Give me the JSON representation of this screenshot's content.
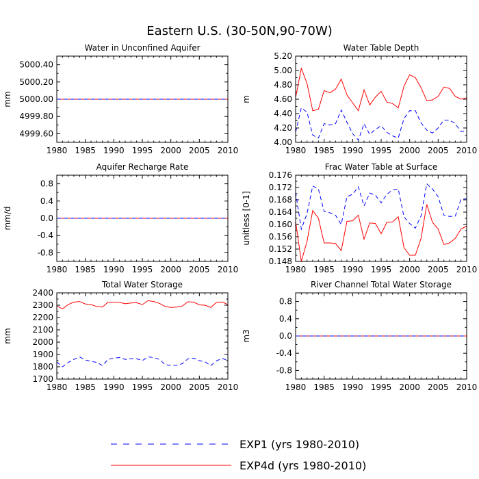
{
  "figure": {
    "title": "Eastern U.S. (30-50N,90-70W)",
    "legend": [
      {
        "label": "EXP1 (yrs 1980-2010)",
        "color": "#0000ff",
        "dash": "dashed"
      },
      {
        "label": "EXP4d (yrs 1980-2010)",
        "color": "#ff0000",
        "dash": "solid"
      }
    ]
  },
  "chart_data": [
    {
      "type": "line",
      "title": "Water in Unconfined Aquifer",
      "ylabel": "mm",
      "xlim": [
        1980,
        2010
      ],
      "ylim": [
        4999.5,
        5000.5
      ],
      "xticks": [
        1980,
        1985,
        1990,
        1995,
        2000,
        2005,
        2010
      ],
      "xtick_labels": [
        "1980",
        "1985",
        "1990",
        "1995",
        "2000",
        "2005",
        "2010"
      ],
      "yticks": [
        4999.6,
        4999.8,
        5000.0,
        5000.2,
        5000.4
      ],
      "ytick_labels": [
        "4999.60",
        "4999.80",
        "5000.00",
        "5000.20",
        "5000.40"
      ],
      "x": [
        1980,
        2010
      ],
      "series": [
        {
          "name": "EXP4d (yrs 1980-2010)",
          "color": "#ff0000",
          "dash": "solid",
          "values": [
            5000.0,
            5000.0
          ]
        },
        {
          "name": "EXP1 (yrs 1980-2010)",
          "color": "#0000ff",
          "dash": "dashed",
          "values": [
            5000.0,
            5000.0
          ]
        }
      ]
    },
    {
      "type": "line",
      "title": "Water Table Depth",
      "ylabel": "m",
      "xlim": [
        1980,
        2010
      ],
      "ylim": [
        4.0,
        5.2
      ],
      "xticks": [
        1980,
        1985,
        1990,
        1995,
        2000,
        2005,
        2010
      ],
      "xtick_labels": [
        "1980",
        "1985",
        "1990",
        "1995",
        "2000",
        "2005",
        "2010"
      ],
      "yticks": [
        4.0,
        4.2,
        4.4,
        4.6,
        4.8,
        5.0,
        5.2
      ],
      "ytick_labels": [
        "4.00",
        "4.20",
        "4.40",
        "4.60",
        "4.80",
        "5.00",
        "5.20"
      ],
      "x": [
        1980,
        1981,
        1982,
        1983,
        1984,
        1985,
        1986,
        1987,
        1988,
        1989,
        1990,
        1991,
        1992,
        1993,
        1994,
        1995,
        1996,
        1997,
        1998,
        1999,
        2000,
        2001,
        2002,
        2003,
        2004,
        2005,
        2006,
        2007,
        2008,
        2009,
        2010
      ],
      "series": [
        {
          "name": "EXP4d (yrs 1980-2010)",
          "color": "#ff0000",
          "dash": "solid",
          "values": [
            4.62,
            5.03,
            4.82,
            4.44,
            4.46,
            4.72,
            4.69,
            4.74,
            4.88,
            4.66,
            4.55,
            4.44,
            4.73,
            4.52,
            4.63,
            4.71,
            4.56,
            4.54,
            4.48,
            4.78,
            4.94,
            4.9,
            4.76,
            4.58,
            4.59,
            4.64,
            4.77,
            4.75,
            4.64,
            4.6,
            4.62
          ]
        },
        {
          "name": "EXP1 (yrs 1980-2010)",
          "color": "#0000ff",
          "dash": "dashed",
          "values": [
            4.14,
            4.48,
            4.42,
            4.1,
            4.06,
            4.26,
            4.24,
            4.26,
            4.45,
            4.28,
            4.12,
            4.03,
            4.26,
            4.11,
            4.18,
            4.23,
            4.14,
            4.09,
            4.06,
            4.33,
            4.44,
            4.44,
            4.27,
            4.17,
            4.13,
            4.2,
            4.31,
            4.31,
            4.26,
            4.15,
            4.16
          ]
        }
      ]
    },
    {
      "type": "line",
      "title": "Aquifer Recharge Rate",
      "ylabel": "mm/d",
      "xlim": [
        1980,
        2010
      ],
      "ylim": [
        -1.0,
        1.0
      ],
      "xticks": [
        1980,
        1985,
        1990,
        1995,
        2000,
        2005,
        2010
      ],
      "xtick_labels": [
        "1980",
        "1985",
        "1990",
        "1995",
        "2000",
        "2005",
        "2010"
      ],
      "yticks": [
        -0.8,
        -0.4,
        0.0,
        0.4,
        0.8
      ],
      "ytick_labels": [
        "-0.8",
        "-0.4",
        "0.0",
        "0.4",
        "0.8"
      ],
      "x": [
        1980,
        2010
      ],
      "series": [
        {
          "name": "EXP4d (yrs 1980-2010)",
          "color": "#ff0000",
          "dash": "solid",
          "values": [
            0.0,
            0.0
          ]
        },
        {
          "name": "EXP1 (yrs 1980-2010)",
          "color": "#0000ff",
          "dash": "dashed",
          "values": [
            0.0,
            0.0
          ]
        }
      ]
    },
    {
      "type": "line",
      "title": "Frac Water Table at Surface",
      "ylabel": "unitless [0-1]",
      "xlim": [
        1980,
        2010
      ],
      "ylim": [
        0.148,
        0.176
      ],
      "xticks": [
        1980,
        1985,
        1990,
        1995,
        2000,
        2005,
        2010
      ],
      "xtick_labels": [
        "1980",
        "1985",
        "1990",
        "1995",
        "2000",
        "2005",
        "2010"
      ],
      "yticks": [
        0.148,
        0.152,
        0.156,
        0.16,
        0.164,
        0.168,
        0.172,
        0.176
      ],
      "ytick_labels": [
        "0.148",
        "0.152",
        "0.156",
        "0.160",
        "0.164",
        "0.168",
        "0.172",
        "0.176"
      ],
      "x": [
        1980,
        1981,
        1982,
        1983,
        1984,
        1985,
        1986,
        1987,
        1988,
        1989,
        1990,
        1991,
        1992,
        1993,
        1994,
        1995,
        1996,
        1997,
        1998,
        1999,
        2000,
        2001,
        2002,
        2003,
        2004,
        2005,
        2006,
        2007,
        2008,
        2009,
        2010
      ],
      "series": [
        {
          "name": "EXP4d (yrs 1980-2010)",
          "color": "#ff0000",
          "dash": "solid",
          "values": [
            0.161,
            0.148,
            0.1545,
            0.1645,
            0.162,
            0.154,
            0.154,
            0.1538,
            0.1515,
            0.161,
            0.1612,
            0.163,
            0.1552,
            0.1605,
            0.1603,
            0.157,
            0.1607,
            0.1608,
            0.1625,
            0.1525,
            0.15,
            0.15,
            0.1555,
            0.1665,
            0.1607,
            0.1585,
            0.1535,
            0.154,
            0.1555,
            0.1585,
            0.1595
          ]
        },
        {
          "name": "EXP1 (yrs 1980-2010)",
          "color": "#0000ff",
          "dash": "dashed",
          "values": [
            0.1705,
            0.1585,
            0.1635,
            0.1725,
            0.1715,
            0.1642,
            0.1638,
            0.163,
            0.16,
            0.169,
            0.1698,
            0.1722,
            0.166,
            0.1702,
            0.1695,
            0.167,
            0.1698,
            0.1712,
            0.1715,
            0.1625,
            0.1603,
            0.1588,
            0.1628,
            0.1732,
            0.1715,
            0.169,
            0.163,
            0.1626,
            0.1627,
            0.1682,
            0.1683
          ]
        }
      ]
    },
    {
      "type": "line",
      "title": "Total Water Storage",
      "ylabel": "mm",
      "xlim": [
        1980,
        2010
      ],
      "ylim": [
        1700,
        2400
      ],
      "xticks": [
        1980,
        1985,
        1990,
        1995,
        2000,
        2005,
        2010
      ],
      "xtick_labels": [
        "1980",
        "1985",
        "1990",
        "1995",
        "2000",
        "2005",
        "2010"
      ],
      "yticks": [
        1700,
        1800,
        1900,
        2000,
        2100,
        2200,
        2300,
        2400
      ],
      "ytick_labels": [
        "1700",
        "1800",
        "1900",
        "2000",
        "2100",
        "2200",
        "2300",
        "2400"
      ],
      "x": [
        1980,
        1981,
        1982,
        1983,
        1984,
        1985,
        1986,
        1987,
        1988,
        1989,
        1990,
        1991,
        1992,
        1993,
        1994,
        1995,
        1996,
        1997,
        1998,
        1999,
        2000,
        2001,
        2002,
        2003,
        2004,
        2005,
        2006,
        2007,
        2008,
        2009,
        2010
      ],
      "series": [
        {
          "name": "EXP4d (yrs 1980-2010)",
          "color": "#ff0000",
          "dash": "solid",
          "values": [
            2295,
            2270,
            2305,
            2325,
            2330,
            2310,
            2305,
            2290,
            2285,
            2325,
            2325,
            2323,
            2312,
            2318,
            2320,
            2305,
            2337,
            2330,
            2315,
            2290,
            2282,
            2285,
            2293,
            2328,
            2325,
            2303,
            2300,
            2282,
            2322,
            2326,
            2305
          ]
        },
        {
          "name": "EXP1 (yrs 1980-2010)",
          "color": "#0000ff",
          "dash": "dashed",
          "values": [
            1840,
            1800,
            1835,
            1860,
            1880,
            1855,
            1845,
            1835,
            1810,
            1860,
            1870,
            1875,
            1860,
            1865,
            1865,
            1850,
            1880,
            1875,
            1860,
            1818,
            1810,
            1812,
            1825,
            1865,
            1870,
            1850,
            1840,
            1810,
            1848,
            1868,
            1850
          ]
        }
      ]
    },
    {
      "type": "line",
      "title": "River Channel Total Water Storage",
      "ylabel": "m3",
      "xlim": [
        1980,
        2010
      ],
      "ylim": [
        -1.0,
        1.0
      ],
      "xticks": [
        1980,
        1985,
        1990,
        1995,
        2000,
        2005,
        2010
      ],
      "xtick_labels": [
        "1980",
        "1985",
        "1990",
        "1995",
        "2000",
        "2005",
        "2010"
      ],
      "yticks": [
        -0.8,
        -0.4,
        0.0,
        0.4,
        0.8
      ],
      "ytick_labels": [
        "-0.8",
        "-0.4",
        "0.0",
        "0.4",
        "0.8"
      ],
      "x": [
        1980,
        2010
      ],
      "series": [
        {
          "name": "EXP4d (yrs 1980-2010)",
          "color": "#ff0000",
          "dash": "solid",
          "values": [
            0.0,
            0.0
          ]
        },
        {
          "name": "EXP1 (yrs 1980-2010)",
          "color": "#0000ff",
          "dash": "dashed",
          "values": [
            0.0,
            0.0
          ]
        }
      ]
    }
  ]
}
